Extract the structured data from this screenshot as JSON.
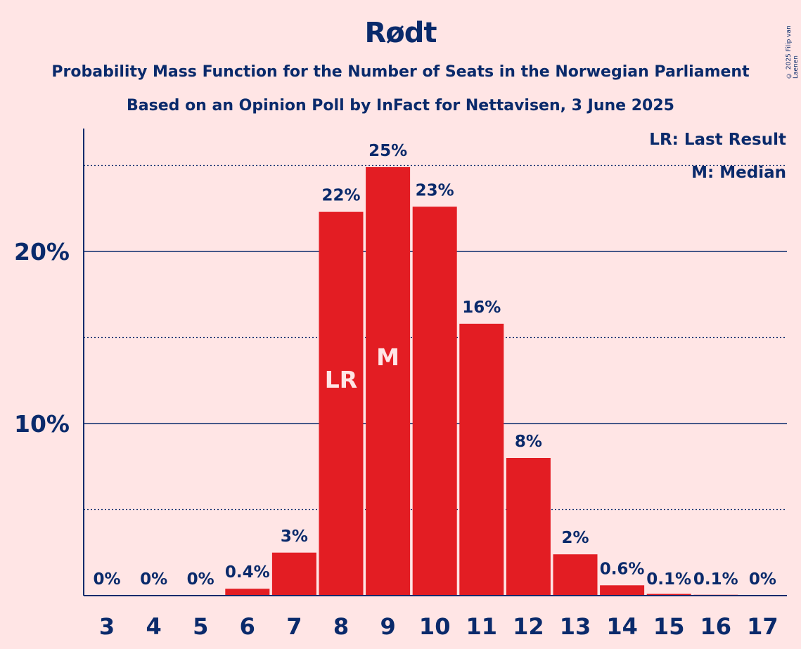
{
  "title": "Rødt",
  "subtitle1": "Probability Mass Function for the Number of Seats in the Norwegian Parliament",
  "subtitle2": "Based on an Opinion Poll by InFact for Nettavisen, 3 June 2025",
  "copyright": "© 2025 Filip van Laenen",
  "legend": {
    "last_result": "LR: Last Result",
    "median": "M: Median"
  },
  "colors": {
    "background": "#FFE5E5",
    "bar": "#E31D23",
    "text": "#0A2A6B"
  },
  "chart_data": {
    "type": "bar",
    "categories": [
      "3",
      "4",
      "5",
      "6",
      "7",
      "8",
      "9",
      "10",
      "11",
      "12",
      "13",
      "14",
      "15",
      "16",
      "17"
    ],
    "values": [
      0,
      0,
      0,
      0.4,
      2.5,
      22.3,
      24.9,
      22.6,
      15.8,
      8.0,
      2.4,
      0.6,
      0.1,
      0.05,
      0
    ],
    "data_labels": [
      "0%",
      "0%",
      "0%",
      "0.4%",
      "3%",
      "22%",
      "25%",
      "23%",
      "16%",
      "8%",
      "2%",
      "0.6%",
      "0.1%",
      "0.1%",
      "0%"
    ],
    "ylim": [
      0,
      27
    ],
    "yticks": [
      {
        "value": 10,
        "label": "10%"
      },
      {
        "value": 20,
        "label": "20%"
      }
    ],
    "minor_gridlines": [
      5,
      15,
      25
    ],
    "bar_markers": [
      {
        "category": "8",
        "label": "LR"
      },
      {
        "category": "9",
        "label": "M"
      }
    ],
    "legend_position": "top-right",
    "xlabel": "",
    "ylabel": ""
  }
}
